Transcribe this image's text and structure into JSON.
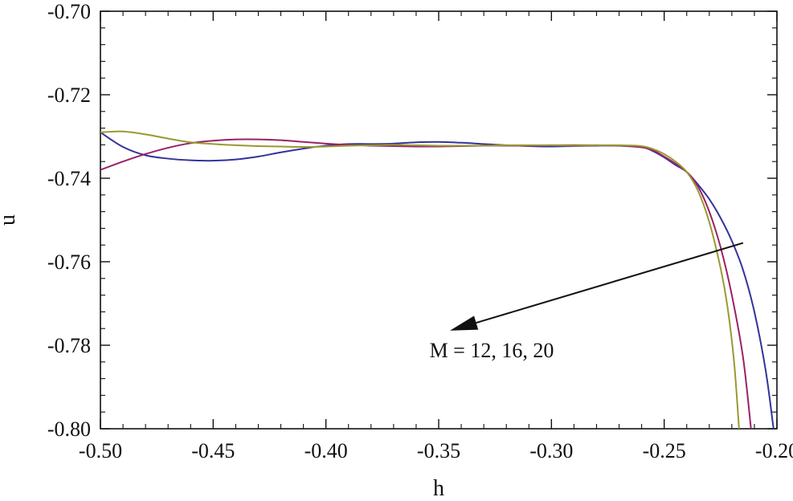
{
  "chart_data": {
    "type": "line",
    "title": "",
    "xlabel": "h",
    "ylabel": "u",
    "xlim": [
      -0.5,
      -0.2
    ],
    "ylim": [
      -0.8,
      -0.7
    ],
    "x_ticks": [
      "-0.50",
      "-0.45",
      "-0.40",
      "-0.35",
      "-0.30",
      "-0.25",
      "-0.20"
    ],
    "y_ticks": [
      "-0.70",
      "-0.72",
      "-0.74",
      "-0.76",
      "-0.78",
      "-0.80"
    ],
    "grid": false,
    "legend": "none",
    "annotation": {
      "text": "M = 12, 16, 20",
      "arrow_from": [
        -0.215,
        -0.7555
      ],
      "arrow_to": [
        -0.345,
        -0.7765
      ]
    },
    "series": [
      {
        "color": "#33339a",
        "points": [
          [
            -0.5,
            -0.729
          ],
          [
            -0.49,
            -0.7325
          ],
          [
            -0.48,
            -0.7345
          ],
          [
            -0.47,
            -0.7353
          ],
          [
            -0.46,
            -0.7357
          ],
          [
            -0.45,
            -0.7358
          ],
          [
            -0.44,
            -0.7355
          ],
          [
            -0.43,
            -0.7348
          ],
          [
            -0.42,
            -0.7338
          ],
          [
            -0.41,
            -0.7329
          ],
          [
            -0.4,
            -0.7322
          ],
          [
            -0.39,
            -0.7318
          ],
          [
            -0.38,
            -0.7318
          ],
          [
            -0.37,
            -0.7317
          ],
          [
            -0.36,
            -0.7314
          ],
          [
            -0.35,
            -0.7313
          ],
          [
            -0.34,
            -0.7315
          ],
          [
            -0.33,
            -0.7318
          ],
          [
            -0.32,
            -0.7321
          ],
          [
            -0.31,
            -0.7323
          ],
          [
            -0.3,
            -0.7324
          ],
          [
            -0.29,
            -0.7323
          ],
          [
            -0.28,
            -0.7322
          ],
          [
            -0.27,
            -0.7322
          ],
          [
            -0.26,
            -0.7325
          ],
          [
            -0.255,
            -0.7335
          ],
          [
            -0.25,
            -0.735
          ],
          [
            -0.245,
            -0.7368
          ],
          [
            -0.24,
            -0.7385
          ],
          [
            -0.235,
            -0.7415
          ],
          [
            -0.23,
            -0.745
          ],
          [
            -0.225,
            -0.7495
          ],
          [
            -0.22,
            -0.755
          ],
          [
            -0.215,
            -0.762
          ],
          [
            -0.21,
            -0.772
          ],
          [
            -0.205,
            -0.786
          ],
          [
            -0.2015,
            -0.8
          ]
        ]
      },
      {
        "color": "#992266",
        "points": [
          [
            -0.5,
            -0.738
          ],
          [
            -0.49,
            -0.736
          ],
          [
            -0.48,
            -0.7342
          ],
          [
            -0.47,
            -0.7327
          ],
          [
            -0.46,
            -0.7316
          ],
          [
            -0.45,
            -0.731
          ],
          [
            -0.44,
            -0.7307
          ],
          [
            -0.43,
            -0.7307
          ],
          [
            -0.42,
            -0.7309
          ],
          [
            -0.41,
            -0.7313
          ],
          [
            -0.4,
            -0.7317
          ],
          [
            -0.39,
            -0.732
          ],
          [
            -0.38,
            -0.7322
          ],
          [
            -0.37,
            -0.7323
          ],
          [
            -0.36,
            -0.7324
          ],
          [
            -0.35,
            -0.7324
          ],
          [
            -0.34,
            -0.7323
          ],
          [
            -0.33,
            -0.7322
          ],
          [
            -0.32,
            -0.7322
          ],
          [
            -0.31,
            -0.7322
          ],
          [
            -0.3,
            -0.7321
          ],
          [
            -0.29,
            -0.7321
          ],
          [
            -0.28,
            -0.7321
          ],
          [
            -0.27,
            -0.7322
          ],
          [
            -0.26,
            -0.7326
          ],
          [
            -0.255,
            -0.7333
          ],
          [
            -0.25,
            -0.7348
          ],
          [
            -0.245,
            -0.7365
          ],
          [
            -0.24,
            -0.7385
          ],
          [
            -0.235,
            -0.742
          ],
          [
            -0.23,
            -0.748
          ],
          [
            -0.225,
            -0.7565
          ],
          [
            -0.22,
            -0.768
          ],
          [
            -0.215,
            -0.783
          ],
          [
            -0.2115,
            -0.8
          ]
        ]
      },
      {
        "color": "#999933",
        "points": [
          [
            -0.5,
            -0.729
          ],
          [
            -0.49,
            -0.7288
          ],
          [
            -0.48,
            -0.7295
          ],
          [
            -0.47,
            -0.7305
          ],
          [
            -0.46,
            -0.7314
          ],
          [
            -0.45,
            -0.7318
          ],
          [
            -0.44,
            -0.7321
          ],
          [
            -0.43,
            -0.7323
          ],
          [
            -0.42,
            -0.7324
          ],
          [
            -0.41,
            -0.7325
          ],
          [
            -0.4,
            -0.7324
          ],
          [
            -0.39,
            -0.7322
          ],
          [
            -0.38,
            -0.7321
          ],
          [
            -0.37,
            -0.732
          ],
          [
            -0.36,
            -0.7321
          ],
          [
            -0.35,
            -0.7322
          ],
          [
            -0.34,
            -0.7322
          ],
          [
            -0.33,
            -0.7322
          ],
          [
            -0.32,
            -0.7321
          ],
          [
            -0.31,
            -0.7321
          ],
          [
            -0.3,
            -0.7321
          ],
          [
            -0.29,
            -0.7322
          ],
          [
            -0.28,
            -0.7321
          ],
          [
            -0.27,
            -0.7321
          ],
          [
            -0.26,
            -0.7323
          ],
          [
            -0.255,
            -0.733
          ],
          [
            -0.25,
            -0.7342
          ],
          [
            -0.245,
            -0.736
          ],
          [
            -0.24,
            -0.7385
          ],
          [
            -0.235,
            -0.743
          ],
          [
            -0.23,
            -0.7505
          ],
          [
            -0.225,
            -0.7615
          ],
          [
            -0.222,
            -0.7705
          ],
          [
            -0.219,
            -0.784
          ],
          [
            -0.2168,
            -0.8
          ]
        ]
      }
    ]
  }
}
